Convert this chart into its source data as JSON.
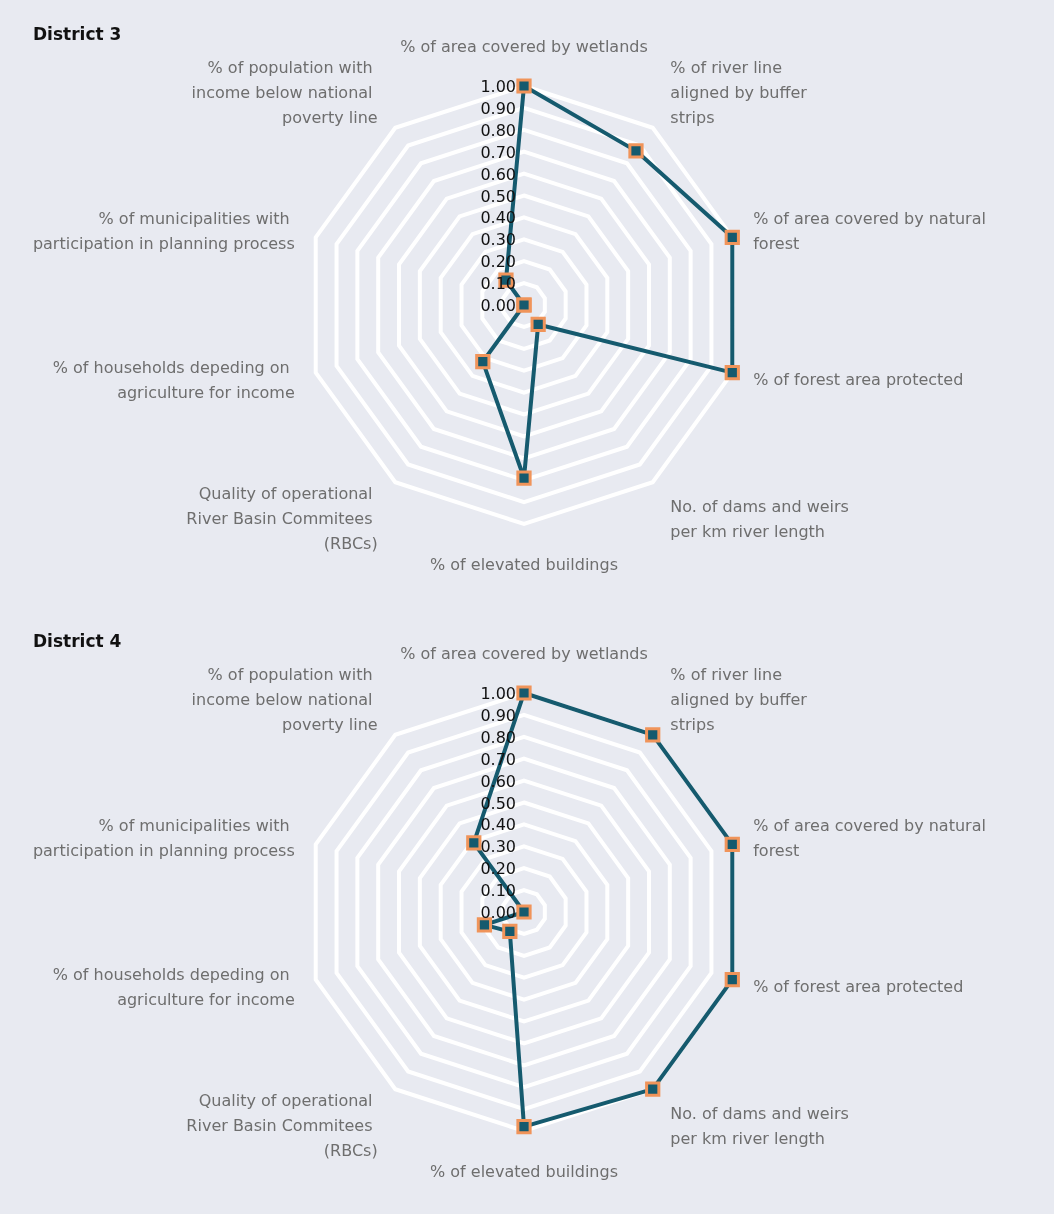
{
  "chart_data": [
    {
      "type": "radar",
      "title": "District 3",
      "categories": [
        "% of area covered by wetlands",
        "% of river line aligned by buffer strips",
        "% of area covered by natural forest",
        "% of forest area protected",
        "No. of dams and weirs per km river length",
        "% of elevated buildings",
        "Quality of operational River Basin Commitees (RBCs)",
        "% of households depeding on agriculture for income",
        "% of municipalities with participation in planning process",
        "% of population with income below national poverty line"
      ],
      "series": [
        {
          "color": "#155a6e",
          "values": [
            1.0,
            0.87,
            1.0,
            1.0,
            0.11,
            0.79,
            0.32,
            0,
            0,
            0.14
          ]
        }
      ],
      "ylim": [
        0,
        1
      ],
      "yticks": [
        {
          "value": 0,
          "label": "0.00"
        },
        {
          "value": 0.1,
          "label": "0.10"
        },
        {
          "value": 0.2,
          "label": "0.20"
        },
        {
          "value": 0.3,
          "label": "0.30"
        },
        {
          "value": 0.4,
          "label": "0.40"
        },
        {
          "value": 0.5,
          "label": "0.50"
        },
        {
          "value": 0.6,
          "label": "0.60"
        },
        {
          "value": 0.7,
          "label": "0.70"
        },
        {
          "value": 0.8,
          "label": "0.80"
        },
        {
          "value": 0.9,
          "label": "0.90"
        },
        {
          "value": 1,
          "label": "1.00"
        }
      ],
      "grid": true,
      "marker": "square"
    },
    {
      "type": "radar",
      "title": "District 4",
      "categories": [
        "% of area covered by wetlands",
        "% of river line aligned by buffer strips",
        "% of area covered by natural forest",
        "% of forest area protected",
        "No. of dams and weirs per km river length",
        "% of elevated buildings",
        "Quality of operational River Basin Commitees (RBCs)",
        "% of households depeding on agriculture for income",
        "% of municipalities with participation in planning process",
        "% of population with income below national poverty line"
      ],
      "series": [
        {
          "color": "#155a6e",
          "values": [
            1.0,
            1.0,
            1.0,
            1.0,
            1.0,
            0.98,
            0.11,
            0.19,
            0,
            0.39
          ]
        }
      ],
      "ylim": [
        0,
        1
      ],
      "yticks": [
        {
          "value": 0,
          "label": "0.00"
        },
        {
          "value": 0.1,
          "label": "0.10"
        },
        {
          "value": 0.2,
          "label": "0.20"
        },
        {
          "value": 0.3,
          "label": "0.30"
        },
        {
          "value": 0.4,
          "label": "0.40"
        },
        {
          "value": 0.5,
          "label": "0.50"
        },
        {
          "value": 0.6,
          "label": "0.60"
        },
        {
          "value": 0.7,
          "label": "0.70"
        },
        {
          "value": 0.8,
          "label": "0.80"
        },
        {
          "value": 0.9,
          "label": "0.90"
        },
        {
          "value": 1,
          "label": "1.00"
        }
      ],
      "grid": true,
      "marker": "square"
    }
  ]
}
